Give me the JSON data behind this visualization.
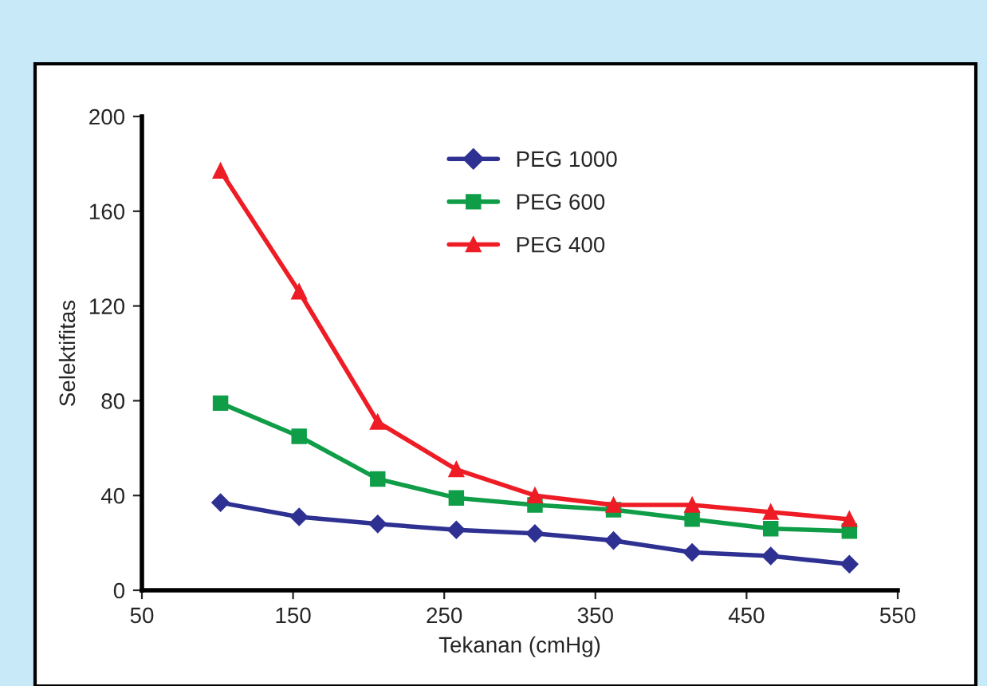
{
  "chart_data": {
    "type": "line",
    "xlabel": "Tekanan (cmHg)",
    "ylabel": "Selektifitas",
    "x": [
      102,
      154,
      206,
      258,
      310,
      362,
      414,
      466,
      518
    ],
    "series": [
      {
        "name": "PEG 1000",
        "color": "#2e3192",
        "marker": "diamond",
        "values": [
          37,
          31,
          28,
          25.5,
          24,
          21,
          16,
          14.5,
          11
        ]
      },
      {
        "name": "PEG 600",
        "color": "#0f9d48",
        "marker": "square",
        "values": [
          79,
          65,
          47,
          39,
          36,
          34,
          30,
          26,
          25
        ]
      },
      {
        "name": "PEG 400",
        "color": "#ee1c25",
        "marker": "triangle",
        "values": [
          177,
          126,
          71,
          51,
          40,
          36,
          36,
          33,
          30
        ]
      }
    ],
    "xlim": [
      50,
      550
    ],
    "xticks": [
      50,
      150,
      250,
      350,
      450,
      550
    ],
    "ylim": [
      0,
      200
    ],
    "yticks": [
      0,
      40,
      80,
      120,
      160,
      200
    ],
    "grid": false,
    "legend": "top",
    "line_style": "solid"
  }
}
